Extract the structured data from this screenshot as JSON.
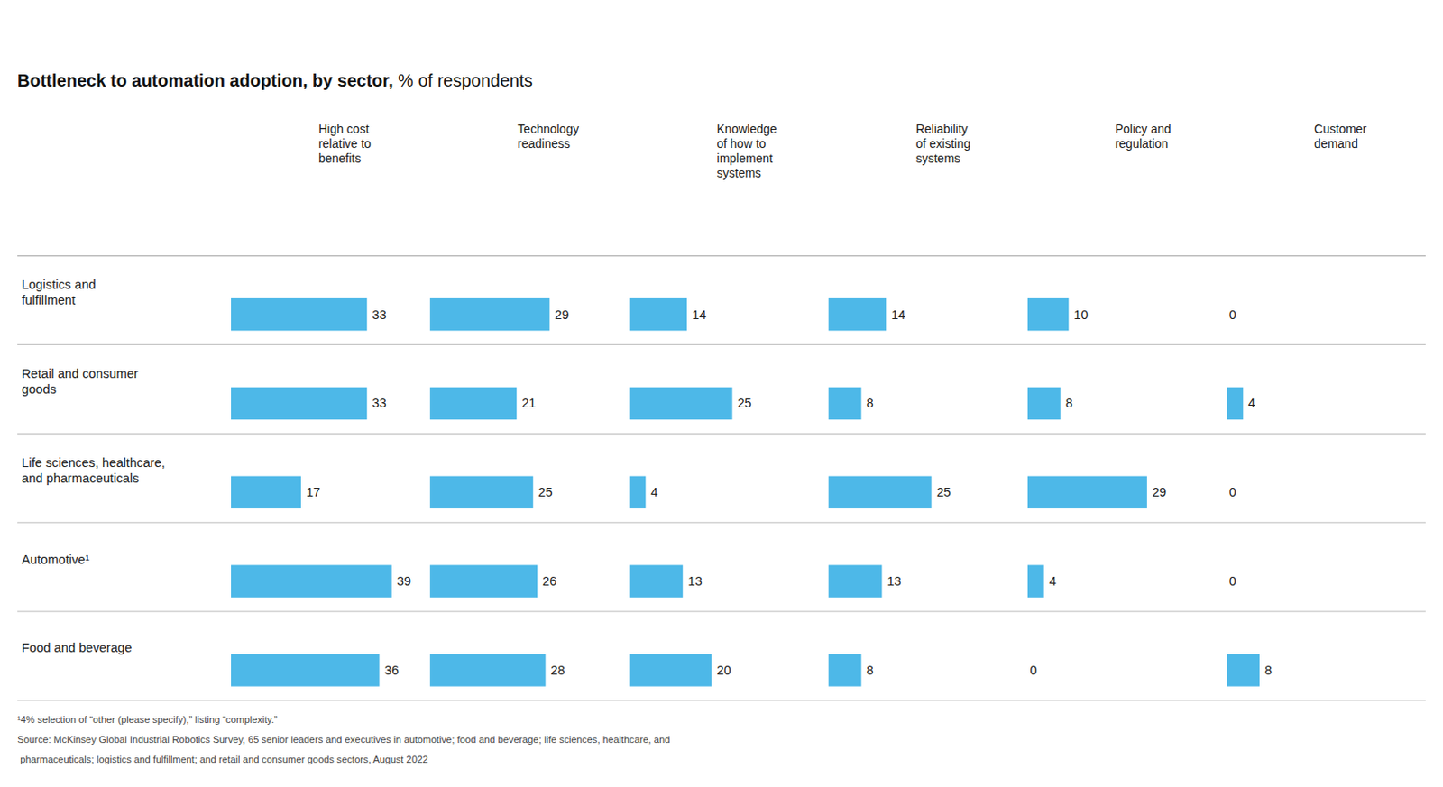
{
  "chart_data": {
    "type": "bar",
    "orientation": "horizontal",
    "title": "Bottleneck to automation adoption, by sector,",
    "subtitle": " % of respondents",
    "categories": [
      "Logistics and\nfulfillment",
      "Retail and consumer\ngoods",
      "Life sciences, healthcare,\nand pharmaceuticals",
      "Automotive¹",
      "Food and beverage"
    ],
    "series": [
      {
        "name": "High cost\nrelative to\nbenefits",
        "values": [
          33,
          33,
          17,
          39,
          36
        ]
      },
      {
        "name": "Technology\nreadiness",
        "values": [
          29,
          21,
          25,
          26,
          28
        ]
      },
      {
        "name": "Knowledge\nof how to\nimplement\nsystems",
        "values": [
          14,
          25,
          4,
          13,
          20
        ]
      },
      {
        "name": "Reliability\nof existing\nsystems",
        "values": [
          14,
          8,
          25,
          13,
          8
        ]
      },
      {
        "name": "Policy and\nregulation",
        "values": [
          10,
          8,
          29,
          4,
          0
        ]
      },
      {
        "name": "Customer\ndemand",
        "values": [
          0,
          4,
          0,
          0,
          8
        ]
      }
    ],
    "color": "#4db8e8",
    "xlim": [
      0,
      42
    ],
    "tick_labels": false,
    "grid": false,
    "data_labels": true,
    "annotations": [
      "¹4% selection of “other (please specify),” listing “complexity.”",
      "Source: McKinsey Global Industrial Robotics Survey, 65 senior leaders and executives in automotive; food and beverage; life sciences, healthcare, and",
      " pharmaceuticals; logistics and fulfillment; and retail and consumer goods sectors, August 2022"
    ]
  }
}
